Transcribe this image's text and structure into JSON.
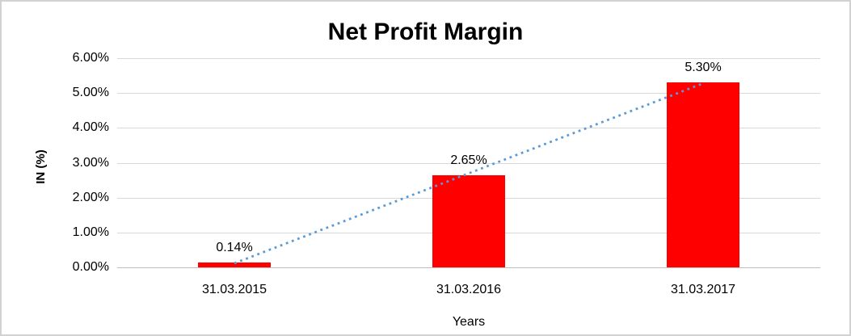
{
  "chart_data": {
    "type": "bar",
    "title": "Net Profit Margin",
    "xlabel": "Years",
    "ylabel": "IN (%)",
    "categories": [
      "31.03.2015",
      "31.03.2016",
      "31.03.2017"
    ],
    "values": [
      0.14,
      2.65,
      5.3
    ],
    "data_labels": [
      "0.14%",
      "2.65%",
      "5.30%"
    ],
    "ylim": [
      0,
      6
    ],
    "ytick_step": 1,
    "ytick_labels": [
      "0.00%",
      "1.00%",
      "2.00%",
      "3.00%",
      "4.00%",
      "5.00%",
      "6.00%"
    ],
    "grid": true,
    "legend_position": "none",
    "bar_color": "#ff0000",
    "gridline_color": "#d9d9d9",
    "axis_line_color": "#bfbfbf",
    "trendline": {
      "type": "linear",
      "style": "dotted",
      "color": "#5b9bd5"
    },
    "background_color": "#ffffff",
    "border_color": "#d2d2d2"
  }
}
